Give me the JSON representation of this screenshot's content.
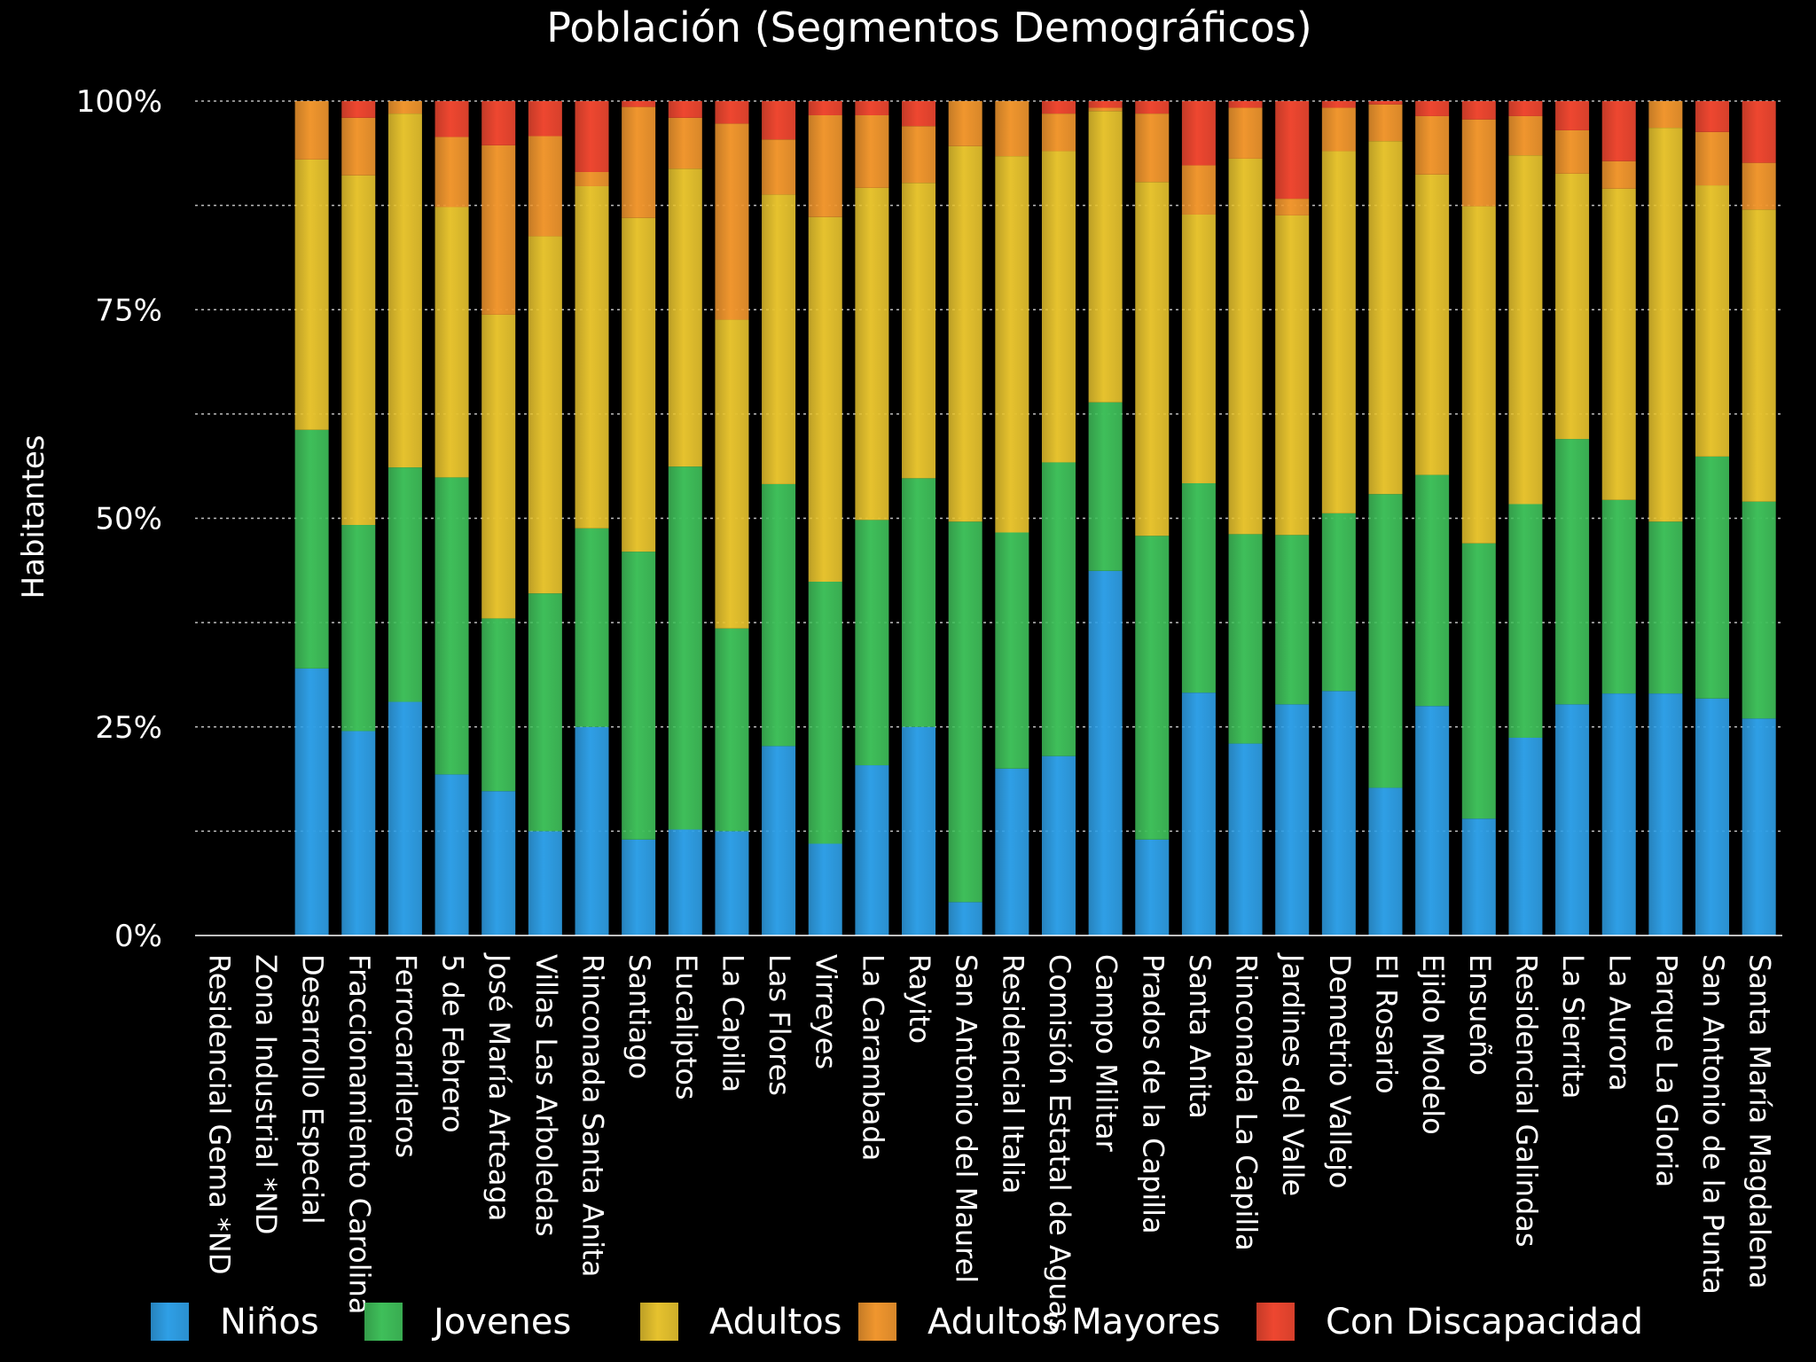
{
  "chart_data": {
    "type": "bar",
    "stacked": "percent",
    "title": "Población (Segmentos Demográficos)",
    "xlabel": "",
    "ylabel": "Habitantes",
    "ylim": [
      0,
      100
    ],
    "y_ticks": [
      "0%",
      "25%",
      "50%",
      "75%",
      "100%"
    ],
    "grid": true,
    "legend_position": "bottom",
    "categories": [
      "Residencial Gema *ND",
      "Zona Industrial *ND",
      "Desarrollo Especial",
      "Fraccionamiento Carolina",
      "Ferrocarrileros",
      "5 de Febrero",
      "José María Arteaga",
      "Villas Las Arboledas",
      "Rinconada Santa Anita",
      "Santiago",
      "Eucaliptos",
      "La Capilla",
      "Las Flores",
      "Virreyes",
      "La Carambada",
      "Rayito",
      "San Antonio del Maurel",
      "Residencial Italia",
      "Comisión Estatal de Aguas",
      "Campo Militar",
      "Prados de la Capilla",
      "Santa Anita",
      "Rinconada La Capilla",
      "Jardines del Valle",
      "Demetrio Vallejo",
      "El Rosario",
      "Ejido Modelo",
      "Ensueño",
      "Residencial Galindas",
      "La Sierrita",
      "La Aurora",
      "Parque La Gloria",
      "San Antonio de la Punta",
      "Santa María Magdalena"
    ],
    "series": [
      {
        "name": "Niños",
        "color": "#2f9fe6",
        "values": [
          0,
          0,
          32,
          24.5,
          28,
          19.3,
          17.3,
          12.5,
          25,
          11.5,
          12.7,
          12.5,
          22.7,
          11,
          20.4,
          25,
          4,
          20,
          21.5,
          43.7,
          11.5,
          29.1,
          23,
          27.7,
          29.3,
          17.7,
          27.5,
          14,
          23.7,
          27.7,
          29,
          29,
          28.4,
          26
        ]
      },
      {
        "name": "Jovenes",
        "color": "#3fbf5a",
        "values": [
          0,
          0,
          28.6,
          24.7,
          28.1,
          35.6,
          20.7,
          28.5,
          23.8,
          34.5,
          43.5,
          24.3,
          31.4,
          31.4,
          29.4,
          29.8,
          45.6,
          28.3,
          35.2,
          20.2,
          36.4,
          25.1,
          25.1,
          20.3,
          21.3,
          35.2,
          27.7,
          33,
          28,
          31.8,
          23.2,
          20.6,
          29,
          26
        ]
      },
      {
        "name": "Adultos",
        "color": "#e6c22e",
        "values": [
          0,
          0,
          32.4,
          41.9,
          42.4,
          32.4,
          36.4,
          42.8,
          41,
          40,
          35.7,
          37,
          34.7,
          43.7,
          39.8,
          35.4,
          45,
          45.1,
          37.3,
          34.9,
          42.4,
          32.2,
          45,
          38.3,
          43.4,
          42.3,
          36,
          40.4,
          41.8,
          31.8,
          37.3,
          47.2,
          32.5,
          35
        ]
      },
      {
        "name": "Adultos Mayores",
        "color": "#f0962e",
        "values": [
          0,
          0,
          7,
          6.9,
          1.5,
          8.4,
          20.3,
          12,
          1.7,
          13.3,
          6.1,
          23.5,
          6.6,
          12.2,
          8.7,
          6.8,
          5.4,
          6.6,
          4.5,
          0.4,
          8.2,
          5.9,
          6.1,
          2,
          5.2,
          4.4,
          7,
          10.4,
          4.7,
          5.2,
          3.3,
          3.2,
          6.4,
          5.6
        ]
      },
      {
        "name": "Con Discapacidad",
        "color": "#ee4730",
        "values": [
          0,
          0,
          0,
          2,
          0,
          4.3,
          5.3,
          4.2,
          8.5,
          0.7,
          2,
          2.7,
          4.6,
          1.7,
          1.7,
          3,
          0,
          0,
          1.5,
          0.8,
          1.5,
          7.7,
          0.8,
          11.7,
          0.8,
          0.4,
          1.8,
          2.2,
          1.8,
          3.5,
          7.2,
          0,
          3.7,
          7.4
        ]
      }
    ]
  }
}
